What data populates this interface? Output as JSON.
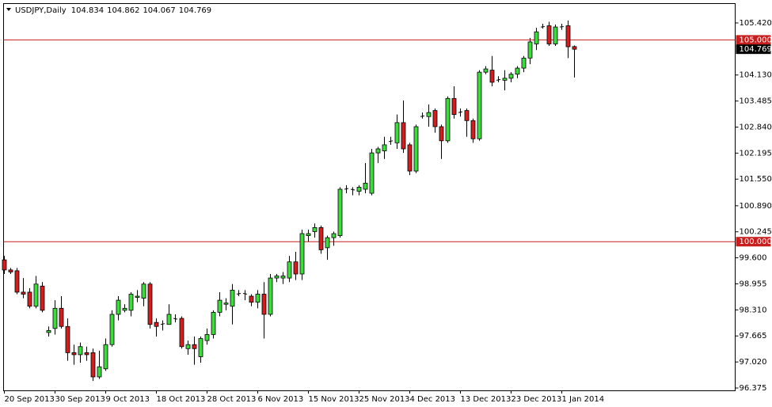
{
  "chart_data": {
    "type": "candlestick",
    "title": "USDJPY,Daily",
    "categories": [
      "20 Sep 2013",
      null,
      null,
      null,
      null,
      null,
      null,
      null,
      "30 Sep 2013",
      null,
      null,
      null,
      null,
      null,
      null,
      null,
      "9 Oct 2013",
      null,
      null,
      null,
      null,
      null,
      null,
      null,
      "18 Oct 2013",
      null,
      null,
      null,
      null,
      null,
      null,
      null,
      "28 Oct 2013",
      null,
      null,
      null,
      null,
      null,
      null,
      null,
      "6 Nov 2013",
      null,
      null,
      null,
      null,
      null,
      null,
      null,
      "15 Nov 2013",
      null,
      null,
      null,
      null,
      null,
      null,
      null,
      "25 Nov 2013",
      null,
      null,
      null,
      null,
      null,
      null,
      null,
      "4 Dec 2013",
      null,
      null,
      null,
      null,
      null,
      null,
      null,
      "13 Dec 2013",
      null,
      null,
      null,
      null,
      null,
      null,
      null,
      "23 Dec 2013",
      null,
      null,
      null,
      null,
      null,
      null,
      null,
      "1 Jan 2014",
      null,
      null
    ],
    "open": [
      99.55,
      99.3,
      99.28,
      98.75,
      98.75,
      98.4,
      98.9,
      97.75,
      97.85,
      98.35,
      97.9,
      97.25,
      97.2,
      97.25,
      97.25,
      96.65,
      96.85,
      97.45,
      98.2,
      98.3,
      98.3,
      98.62,
      98.6,
      98.95,
      98.0,
      97.95,
      97.95,
      98.1,
      98.1,
      97.35,
      97.45,
      97.15,
      97.55,
      97.7,
      98.25,
      98.45,
      98.4,
      98.7,
      98.72,
      98.65,
      98.5,
      98.7,
      98.2,
      99.1,
      99.1,
      99.1,
      99.5,
      99.2,
      100.15,
      100.25,
      100.35,
      99.85,
      100.1,
      100.15,
      101.3,
      101.3,
      101.25,
      101.3,
      101.2,
      102.2,
      102.25,
      102.48,
      102.45,
      102.95,
      102.4,
      101.75,
      103.1,
      103.1,
      103.25,
      102.85,
      102.5,
      103.55,
      103.2,
      103.25,
      103.0,
      102.55,
      104.2,
      104.25,
      104.0,
      104.0,
      104.05,
      104.15,
      104.3,
      104.55,
      104.9,
      105.32,
      105.35,
      104.9,
      105.32,
      105.35,
      104.834
    ],
    "high": [
      99.65,
      99.35,
      99.35,
      99.1,
      98.85,
      99.15,
      99.0,
      97.9,
      98.55,
      98.65,
      98.1,
      97.45,
      97.5,
      97.4,
      97.35,
      97.3,
      97.6,
      98.3,
      98.65,
      98.45,
      98.75,
      98.8,
      99.0,
      99.0,
      98.1,
      98.05,
      98.45,
      98.2,
      98.15,
      97.55,
      97.65,
      97.65,
      97.85,
      98.3,
      98.75,
      98.6,
      98.95,
      98.8,
      98.8,
      98.7,
      98.8,
      99.0,
      99.2,
      99.2,
      99.25,
      99.65,
      99.75,
      100.3,
      100.3,
      100.45,
      100.4,
      100.15,
      100.25,
      101.35,
      101.4,
      101.35,
      101.4,
      101.95,
      102.3,
      102.35,
      102.6,
      102.6,
      103.15,
      103.5,
      102.45,
      102.9,
      103.2,
      103.4,
      103.3,
      102.9,
      103.6,
      103.85,
      103.3,
      103.3,
      103.05,
      104.25,
      104.35,
      104.6,
      104.1,
      104.25,
      104.2,
      104.35,
      104.6,
      105.05,
      105.3,
      105.4,
      105.45,
      105.38,
      105.4,
      105.48,
      104.862
    ],
    "low": [
      99.2,
      99.2,
      98.7,
      98.6,
      98.35,
      98.35,
      98.25,
      97.65,
      97.7,
      97.85,
      97.05,
      96.95,
      97.0,
      97.05,
      96.55,
      96.6,
      96.8,
      97.4,
      98.05,
      98.25,
      98.15,
      98.5,
      98.4,
      97.85,
      97.65,
      97.8,
      97.95,
      98.0,
      97.35,
      97.2,
      96.95,
      97.0,
      97.45,
      97.6,
      98.15,
      98.3,
      97.95,
      98.65,
      98.55,
      98.4,
      98.35,
      97.6,
      98.15,
      99.0,
      98.95,
      99.0,
      99.05,
      99.05,
      100.0,
      100.1,
      99.7,
      99.55,
      99.9,
      100.1,
      101.2,
      101.15,
      101.15,
      101.2,
      101.15,
      101.95,
      102.05,
      102.4,
      102.3,
      102.2,
      101.65,
      101.7,
      103.05,
      102.85,
      102.7,
      102.05,
      102.45,
      103.05,
      103.1,
      102.6,
      102.45,
      102.5,
      104.15,
      103.85,
      103.95,
      103.75,
      103.95,
      104.05,
      104.2,
      104.4,
      104.75,
      105.28,
      104.85,
      104.85,
      105.25,
      104.55,
      104.067
    ],
    "close": [
      99.3,
      99.25,
      98.75,
      98.7,
      98.4,
      98.95,
      98.3,
      97.8,
      98.35,
      97.9,
      97.25,
      97.2,
      97.4,
      97.2,
      96.65,
      96.9,
      97.45,
      98.2,
      98.55,
      98.35,
      98.7,
      98.65,
      98.95,
      97.95,
      97.9,
      97.97,
      98.2,
      98.08,
      97.4,
      97.45,
      97.35,
      97.6,
      97.7,
      98.25,
      98.55,
      98.48,
      98.8,
      98.72,
      98.7,
      98.5,
      98.7,
      98.2,
      99.1,
      99.15,
      99.15,
      99.5,
      99.2,
      100.2,
      100.2,
      100.35,
      99.8,
      100.1,
      100.2,
      101.3,
      101.32,
      101.28,
      101.35,
      101.45,
      102.2,
      102.3,
      102.4,
      102.5,
      102.95,
      102.3,
      101.75,
      102.85,
      103.12,
      103.2,
      102.85,
      102.5,
      103.55,
      103.15,
      103.22,
      103.0,
      102.55,
      104.2,
      104.28,
      103.95,
      104.02,
      104.05,
      104.15,
      104.3,
      104.55,
      104.95,
      105.2,
      105.33,
      104.9,
      105.32,
      105.33,
      104.83,
      104.769
    ],
    "up_color": "#3cdc3c",
    "down_color": "#d21e1e",
    "ylim": [
      96.316,
      105.91
    ],
    "yticks": [
      {
        "value": 105.42,
        "label": "105.420"
      },
      {
        "value": 104.13,
        "label": "104.130"
      },
      {
        "value": 103.485,
        "label": "103.485"
      },
      {
        "value": 102.84,
        "label": "102.840"
      },
      {
        "value": 102.195,
        "label": "102.195"
      },
      {
        "value": 101.55,
        "label": "101.550"
      },
      {
        "value": 100.89,
        "label": "100.890"
      },
      {
        "value": 100.245,
        "label": "100.245"
      },
      {
        "value": 99.6,
        "label": "99.600"
      },
      {
        "value": 98.955,
        "label": "98.955"
      },
      {
        "value": 98.31,
        "label": "98.310"
      },
      {
        "value": 97.665,
        "label": "97.665"
      },
      {
        "value": 97.02,
        "label": "97.020"
      },
      {
        "value": 96.375,
        "label": "96.375"
      }
    ],
    "hlines": [
      {
        "value": 105,
        "label": "105.000",
        "color": "#c81e1e"
      },
      {
        "value": 100,
        "label": "100.000",
        "color": "#c81e1e"
      }
    ],
    "grid": false
  }
}
